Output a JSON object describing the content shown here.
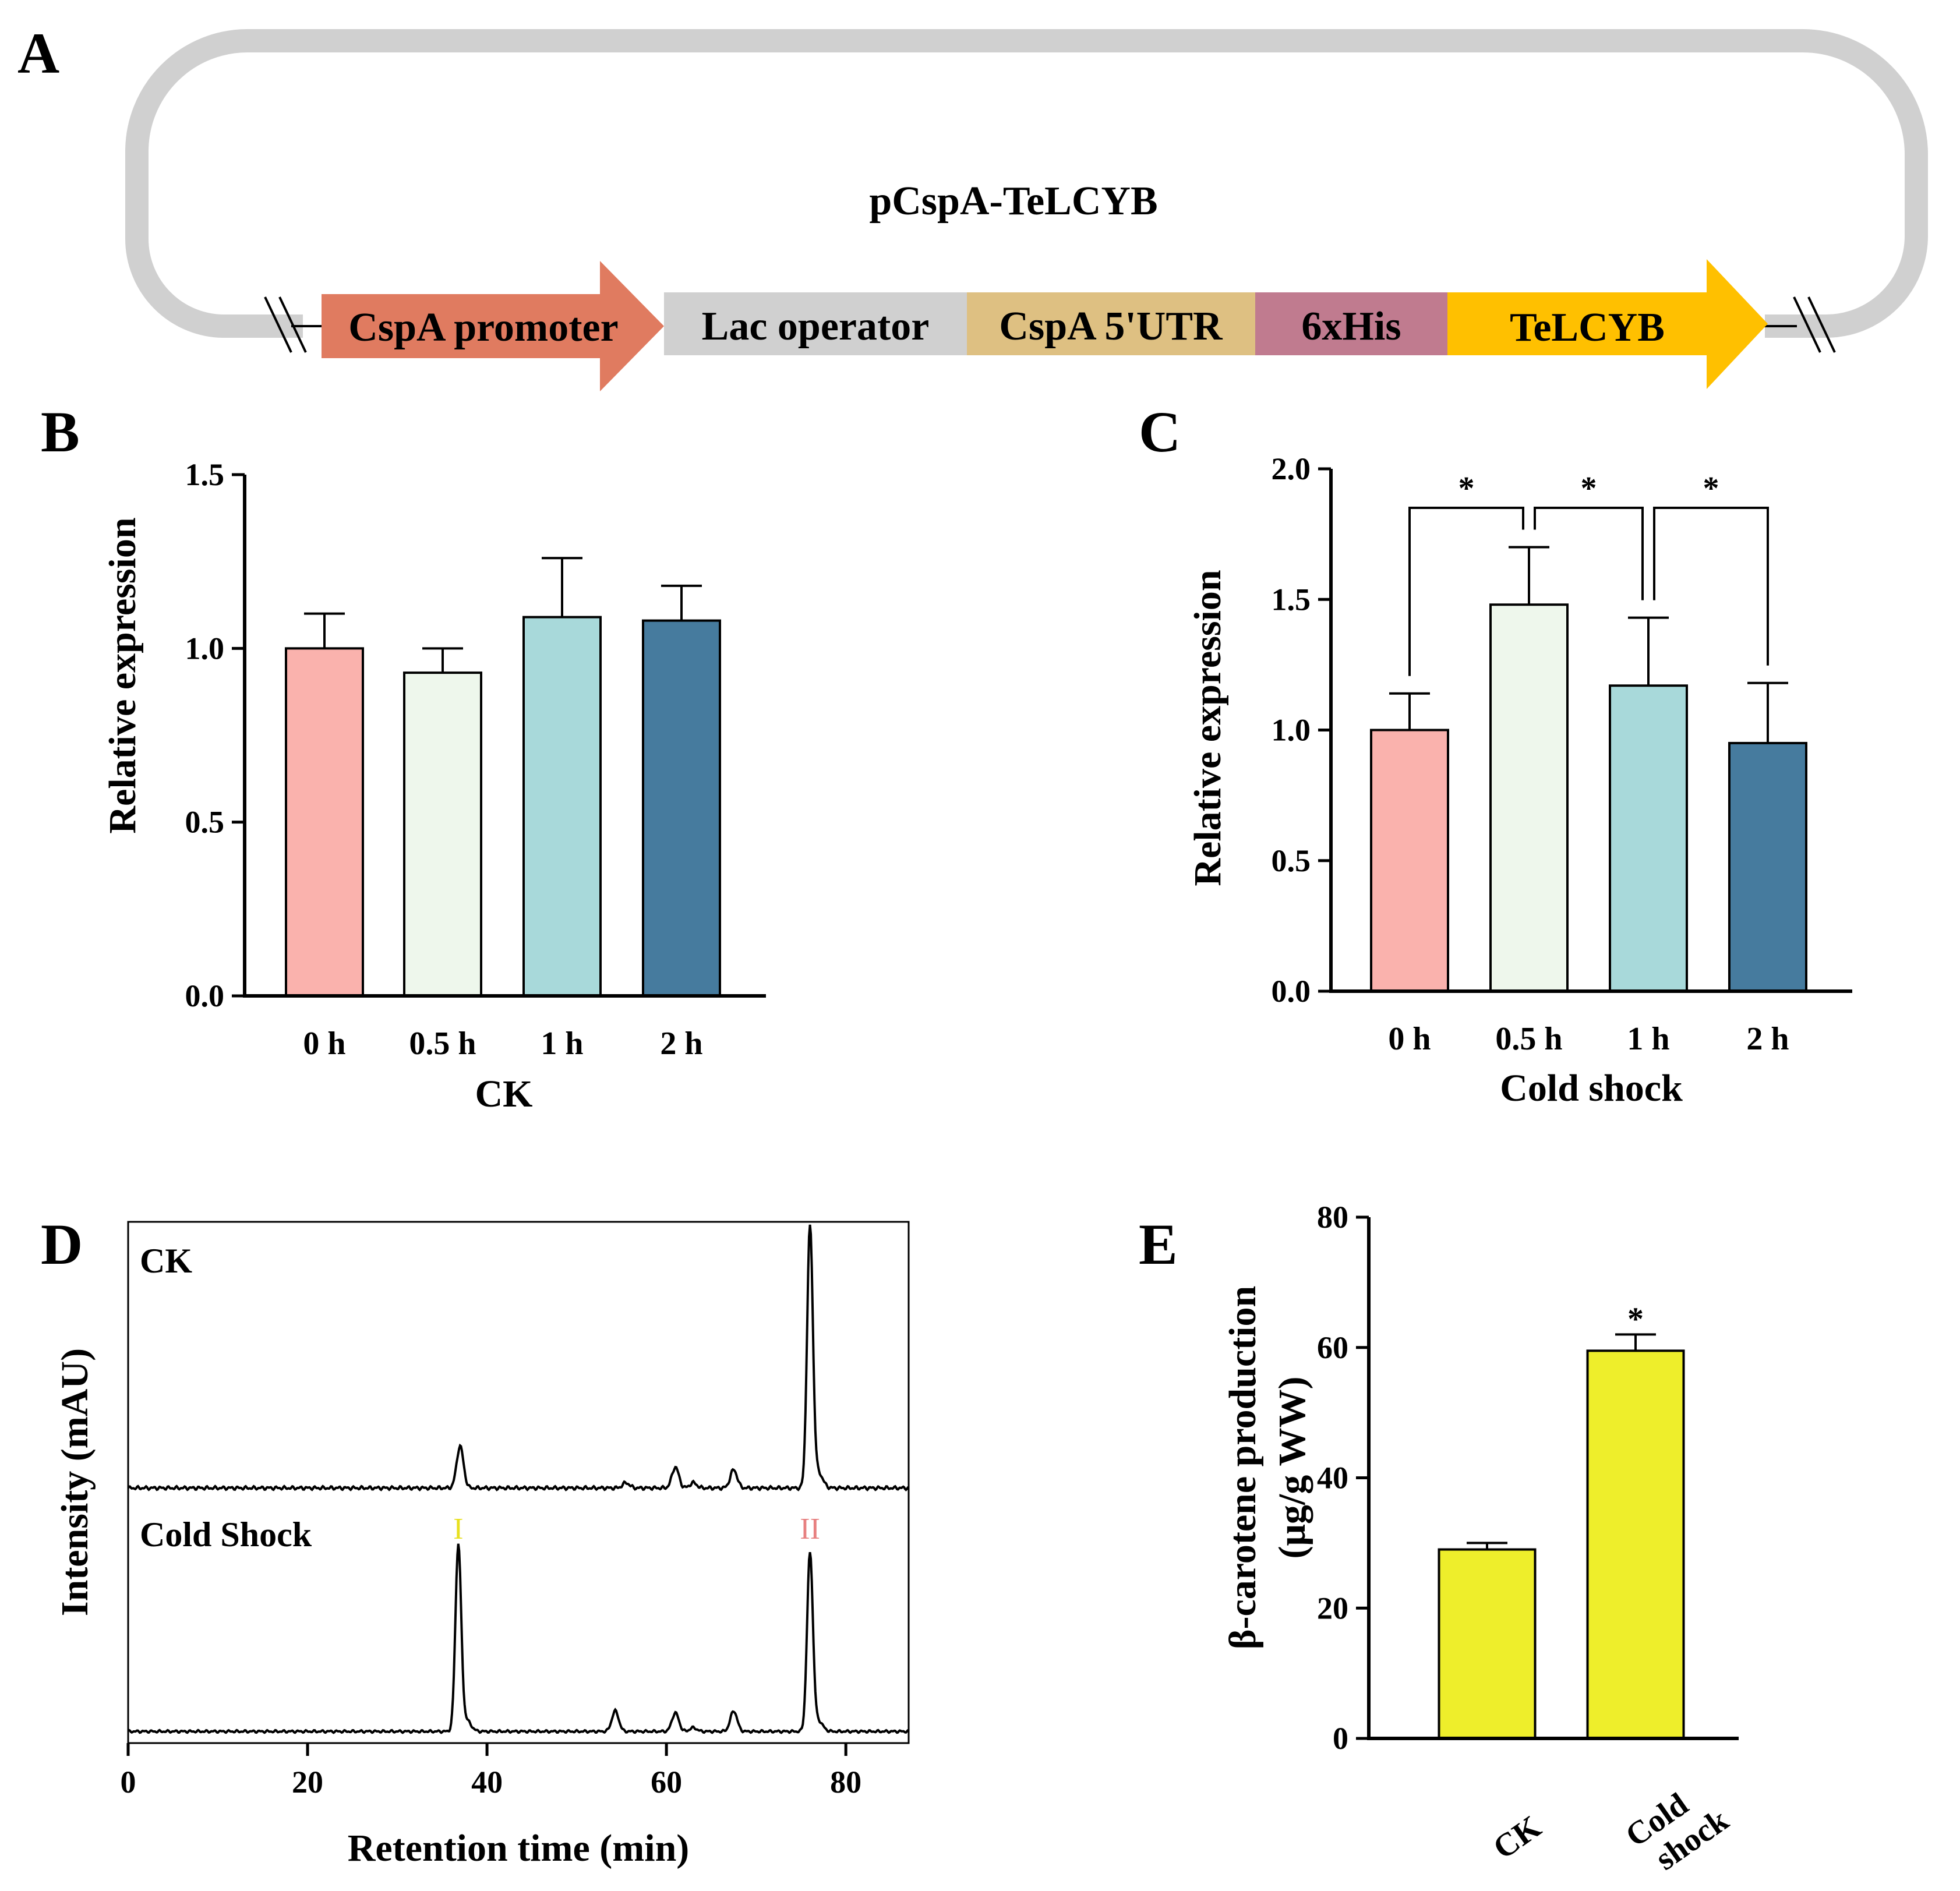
{
  "colors": {
    "promoter": "#e07b60",
    "lac_operator": "#d0d0d0",
    "utr": "#dec082",
    "his": "#c07b8f",
    "telcyb": "#ffc000",
    "plasmid_ring": "#d0d0d0",
    "bar_0h": "#fab2ad",
    "bar_05h": "#eef7ec",
    "bar_1h": "#a8d9da",
    "bar_2h": "#467b9e",
    "bar_e": "#eeee2b",
    "peak_I": "#e8e020",
    "peak_II": "#e78080"
  },
  "panelA": {
    "letter": "A",
    "plasmid_name": "pCspA-TeLCYB",
    "segments": [
      "CspA promoter",
      "Lac operator",
      "CspA 5'UTR",
      "6xHis",
      "TeLCYB"
    ]
  },
  "chart_data": [
    {
      "panel": "B",
      "type": "bar",
      "categories": [
        "0 h",
        "0.5 h",
        "1 h",
        "2 h"
      ],
      "values": [
        1.0,
        0.93,
        1.09,
        1.08
      ],
      "errors": [
        0.1,
        0.07,
        0.17,
        0.1
      ],
      "xlabel": "CK",
      "ylabel": "Relative expression",
      "ylim": [
        0,
        1.5
      ],
      "yticks": [
        "0.0",
        "0.5",
        "1.0",
        "1.5"
      ],
      "grid": false
    },
    {
      "panel": "C",
      "type": "bar",
      "categories": [
        "0 h",
        "0.5 h",
        "1 h",
        "2 h"
      ],
      "values": [
        1.0,
        1.48,
        1.17,
        0.95
      ],
      "errors": [
        0.14,
        0.22,
        0.26,
        0.23
      ],
      "xlabel": "Cold shock",
      "ylabel": "Relative expression",
      "ylim": [
        0,
        2.0
      ],
      "yticks": [
        "0.0",
        "0.5",
        "1.0",
        "1.5",
        "2.0"
      ],
      "significance": [
        {
          "between": [
            "0 h",
            "0.5 h"
          ],
          "label": "*"
        },
        {
          "between": [
            "0.5 h",
            "1 h"
          ],
          "label": "*"
        },
        {
          "between": [
            "1 h",
            "2 h"
          ],
          "label": "*"
        }
      ],
      "grid": false
    },
    {
      "panel": "D",
      "type": "line",
      "xlabel": "Retention time (min)",
      "ylabel": "Intensity (mAU)",
      "xlim": [
        0,
        87
      ],
      "xticks": [
        "0",
        "20",
        "40",
        "60",
        "80"
      ],
      "series": [
        {
          "name": "CK",
          "peaks": [
            {
              "x": 37.0,
              "height": 0.16
            },
            {
              "x": 55.5,
              "height": 0.02
            },
            {
              "x": 61.0,
              "height": 0.08
            },
            {
              "x": 63.0,
              "height": 0.02
            },
            {
              "x": 67.5,
              "height": 0.07
            },
            {
              "x": 76.0,
              "height": 1.0
            }
          ]
        },
        {
          "name": "Cold Shock",
          "peaks": [
            {
              "x": 36.8,
              "height": 1.0
            },
            {
              "x": 54.3,
              "height": 0.11
            },
            {
              "x": 61.0,
              "height": 0.1
            },
            {
              "x": 63.0,
              "height": 0.02
            },
            {
              "x": 67.5,
              "height": 0.11
            },
            {
              "x": 76.0,
              "height": 0.96
            }
          ]
        }
      ],
      "peak_labels": [
        {
          "label": "I",
          "x": 36.8
        },
        {
          "label": "II",
          "x": 76.0
        }
      ]
    },
    {
      "panel": "E",
      "type": "bar",
      "categories": [
        "CK",
        "Cold shock"
      ],
      "values": [
        29,
        59.5
      ],
      "errors": [
        1,
        2.5
      ],
      "ylabel_line1": "β-carotene production",
      "ylabel_line2": "(μg/g WW)",
      "ylim": [
        0,
        80
      ],
      "yticks": [
        "0",
        "20",
        "40",
        "60",
        "80"
      ],
      "significance": [
        {
          "on": "Cold shock",
          "label": "*"
        }
      ],
      "grid": false
    }
  ]
}
